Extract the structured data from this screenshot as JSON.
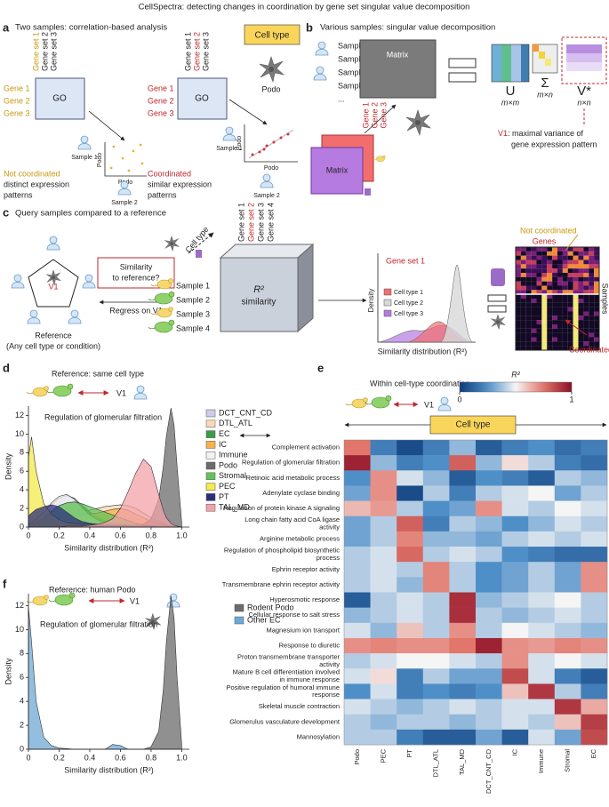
{
  "title": "CellSpectra: detecting changes in coordination by gene set singular value decomposition",
  "panel_a": {
    "label": "a",
    "title": "Two samples: correlation-based analysis",
    "gene_sets_left": [
      "Gene set 1",
      "Gene set 2",
      "Gene set 3"
    ],
    "gene_sets_right": [
      "Gene set 1",
      "Gene set 2",
      "Gene set 3"
    ],
    "cell_type": "Cell type",
    "genes_left": [
      "Gene 1",
      "Gene 2",
      "Gene 3"
    ],
    "genes_right": [
      "Gene 1",
      "Gene 2",
      "Gene 3"
    ],
    "go_left": "GO",
    "go_right": "GO",
    "cell": "Podo",
    "axis_left": [
      "Podo",
      "Podo"
    ],
    "axis_right": [
      "Podo",
      "Podo"
    ],
    "samples_left": [
      "Sample 1",
      "Sample 2"
    ],
    "samples_right": [
      "Sample 1",
      "Sample 2"
    ],
    "left_caption": [
      "Not coordinated",
      "distinct expression",
      "patterns"
    ],
    "right_caption": [
      "Coordinated",
      "similar expression",
      "patterns"
    ]
  },
  "panel_b": {
    "label": "b",
    "title": "Various samples: singular value decomposition",
    "samples": [
      "Sample 1",
      "Sample 2",
      "Sample 3",
      "Sample 4",
      "..."
    ],
    "matrix_top": "Matrix",
    "genes": [
      "Gene 1",
      "Gene 2",
      "Gene 3"
    ],
    "matrix_stack": "Matrix",
    "svd": [
      {
        "symbol": "U",
        "dims": "m×m"
      },
      {
        "symbol": "Σ",
        "dims": "m×n"
      },
      {
        "symbol": "V*",
        "dims": "n×n"
      }
    ],
    "v1": "V1",
    "v1_caption": [
      ": maximal variance of",
      "gene expression pattern"
    ]
  },
  "panel_c": {
    "label": "c",
    "title": "Query samples compared to a reference",
    "v1": "V1",
    "reference": [
      "Reference",
      "(Any cell type or condition)"
    ],
    "question": [
      "Similarity",
      "to reference?"
    ],
    "regress": "Regress on V1",
    "cell_type": "Cell type",
    "gene_sets": [
      "Gene set 1",
      "Gene set 2",
      "Gene set 3",
      "Gene set 4"
    ],
    "samples": [
      "Sample 1",
      "Sample 2",
      "Sample 3",
      "Sample 4"
    ],
    "cube": [
      "R²",
      "similarity"
    ],
    "mini_title": "Gene set 1",
    "mini_ylabel": "Density",
    "mini_legend": [
      "Cell type 1",
      "Cell type 2",
      "Cell type 3"
    ],
    "mini_xlabel": "Similarity distribution (R²)",
    "not_coordinated": "Not coordinated",
    "genes": "Genes",
    "samples_label": "Samples",
    "coordinated": "Coordinated"
  },
  "panel_d": {
    "label": "d",
    "reference": "Reference: same cell type",
    "v1": "V1"
  },
  "panel_e": {
    "label": "e",
    "title": "Within cell-type coordination",
    "v1": "V1",
    "cell_type": "Cell type"
  },
  "panel_f": {
    "label": "f",
    "reference": "Reference: human Podo",
    "v1": "V1"
  },
  "chart_data": [
    {
      "type": "density",
      "title": "Regulation of glomerular filtration",
      "xlabel": "Similarity distribution (R²)",
      "ylabel": "Density",
      "x": [
        0,
        0.02,
        0.05,
        0.1,
        0.15,
        0.2,
        0.25,
        0.3,
        0.35,
        0.4,
        0.45,
        0.5,
        0.55,
        0.6,
        0.65,
        0.7,
        0.75,
        0.8,
        0.85,
        0.88,
        0.9,
        0.93,
        0.95,
        0.97,
        1
      ],
      "xlim": [
        0,
        1.05
      ],
      "ylim": [
        0,
        13
      ],
      "xticks": [
        0,
        0.2,
        0.4,
        0.6,
        0.8,
        {
          "value": 1,
          "label": "1.0"
        }
      ],
      "yticks": [
        0,
        2,
        4,
        6,
        8,
        10,
        12
      ],
      "series": [
        {
          "name": "DCT_CNT_CD",
          "color": "#cfcbe8",
          "values": [
            0.3,
            0.5,
            0.9,
            1.6,
            2.4,
            3.1,
            3.4,
            3.1,
            2.3,
            1.5,
            0.9,
            0.6,
            0.4,
            0.3,
            0.2,
            0.2,
            0.1,
            0.1,
            0.1,
            0,
            0,
            0,
            0,
            0,
            0
          ]
        },
        {
          "name": "DTL_ATL",
          "color": "#fbd9b5",
          "values": [
            0.2,
            0.3,
            0.4,
            0.6,
            0.8,
            1,
            1.2,
            1.4,
            1.6,
            1.8,
            2,
            2.2,
            2.3,
            2.4,
            2.3,
            2,
            1.5,
            1,
            0.6,
            0.4,
            0.3,
            0.2,
            0.1,
            0.1,
            0
          ]
        },
        {
          "name": "EC",
          "color": "#3d9b48",
          "values": [
            0.1,
            0.2,
            0.4,
            0.8,
            1.5,
            2.3,
            2.6,
            2.8,
            2.4,
            1.6,
            1.1,
            0.7,
            0.5,
            0.4,
            0.3,
            0.2,
            0.2,
            0.1,
            0.1,
            0.1,
            0,
            0,
            0,
            0,
            0
          ]
        },
        {
          "name": "IC",
          "color": "#f5b24e",
          "values": [
            0.2,
            0.3,
            0.4,
            0.6,
            0.8,
            1,
            1.1,
            1.2,
            1.3,
            1.4,
            1.5,
            1.7,
            1.9,
            2,
            1.8,
            1.4,
            1,
            0.6,
            0.4,
            0.3,
            0.2,
            0.1,
            0.1,
            0,
            0
          ]
        },
        {
          "name": "Immune",
          "color": "#f2f2f2",
          "values": [
            0.2,
            0.4,
            0.8,
            1.6,
            2.6,
            3.3,
            3.5,
            3,
            2.1,
            1.3,
            0.8,
            0.5,
            0.3,
            0.2,
            0.1,
            0.1,
            0.1,
            0,
            0,
            0,
            0,
            0,
            0,
            0,
            0
          ]
        },
        {
          "name": "Podo",
          "color": "#6b6b6b",
          "values": [
            0,
            0,
            0,
            0,
            0,
            0,
            0,
            0,
            0,
            0,
            0,
            0,
            0,
            0,
            0,
            0.1,
            0.3,
            0.9,
            3,
            6.5,
            9.8,
            12.8,
            11,
            6.5,
            0.5
          ]
        },
        {
          "name": "Stromal",
          "color": "#62c25a",
          "values": [
            0.1,
            0.2,
            0.5,
            1,
            1.7,
            2.3,
            2.6,
            2.7,
            2.5,
            2.2,
            1.9,
            1.6,
            1.3,
            1,
            0.7,
            0.4,
            0.2,
            0.1,
            0.1,
            0,
            0,
            0,
            0,
            0,
            0
          ]
        },
        {
          "name": "PEC",
          "color": "#f3ea4c",
          "values": [
            7.5,
            9.7,
            6,
            2.5,
            1.4,
            0.8,
            0.5,
            0.4,
            0.3,
            0.3,
            0.3,
            0.3,
            0.2,
            0.2,
            0.2,
            0.2,
            0.2,
            0.1,
            0.1,
            0.1,
            0.1,
            0,
            0,
            0,
            0
          ]
        },
        {
          "name": "PT",
          "color": "#2b2e7a",
          "values": [
            1.2,
            1.5,
            1.9,
            2.2,
            2.4,
            2.2,
            1.6,
            1,
            0.6,
            0.4,
            0.3,
            0.2,
            0.2,
            0.2,
            0.1,
            0.1,
            0.1,
            0.1,
            0,
            0,
            0,
            0,
            0,
            0,
            0
          ]
        },
        {
          "name": "TAL_MD",
          "color": "#f2a1a8",
          "values": [
            0,
            0,
            0,
            0,
            0,
            0,
            0.1,
            0.1,
            0.1,
            0.2,
            0.3,
            0.5,
            0.9,
            2,
            3.8,
            5.8,
            7.3,
            6.5,
            3.5,
            1.8,
            1,
            0.4,
            0.2,
            0.1,
            0
          ]
        }
      ]
    },
    {
      "type": "heatmap",
      "colorbar_label": "R²",
      "clim": [
        0,
        1
      ],
      "cticks": [
        0,
        1
      ],
      "colormap": [
        "#0d3b7a",
        "#4f8fc8",
        "#f5f5f5",
        "#e2766a",
        "#8c0d25"
      ],
      "columns": [
        "Podo",
        "PEC",
        "PT",
        "DTL_ATL",
        "TAL_MD",
        "DCT_CNT_CD",
        "IC",
        "Immune",
        "Stromal",
        "EC"
      ],
      "rows": [
        "Complement activation",
        "Regulation of glomerular filtration",
        "Retinoic acid metabolic process",
        "Adenylate cyclase binding",
        "Regulation of protein kinase A signaling",
        "Long chain fatty acid CoA ligase activity",
        "Arginine metabolic process",
        "Regulation of phospholipid biosynthetic process",
        "Ephrin receptor activity",
        "Transmembrane ephrin receptor activity",
        "Hyperosmotic response",
        "Cellular response to salt stress",
        "Magnesium ion transport",
        "Response to diuretic",
        "Proton transmembrane transporter activity",
        "Mature B cell differentiation involved in immune response",
        "Positive regulation of humoral immune response",
        "Skeletal muscle contraction",
        "Glomerulus vasculature development",
        "Mannosylation"
      ],
      "values": [
        [
          0.75,
          0.2,
          0.05,
          0.2,
          0.35,
          0.1,
          0.2,
          0.25,
          0.15,
          0.2
        ],
        [
          0.95,
          0.35,
          0.2,
          0.25,
          0.8,
          0.35,
          0.55,
          0.4,
          0.2,
          0.15
        ],
        [
          0.25,
          0.7,
          0.45,
          0.35,
          0.1,
          0.25,
          0.2,
          0.1,
          0.4,
          0.35
        ],
        [
          0.3,
          0.7,
          0.05,
          0.4,
          0.2,
          0.4,
          0.45,
          0.5,
          0.3,
          0.4
        ],
        [
          0.62,
          0.68,
          0.4,
          0.25,
          0.3,
          0.7,
          0.45,
          0.4,
          0.5,
          0.45
        ],
        [
          0.3,
          0.4,
          0.8,
          0.2,
          0.4,
          0.35,
          0.25,
          0.35,
          0.45,
          0.4
        ],
        [
          0.3,
          0.4,
          0.72,
          0.35,
          0.35,
          0.3,
          0.4,
          0.45,
          0.4,
          0.45
        ],
        [
          0.4,
          0.45,
          0.78,
          0.4,
          0.45,
          0.4,
          0.25,
          0.2,
          0.15,
          0.15
        ],
        [
          0.4,
          0.45,
          0.4,
          0.72,
          0.4,
          0.25,
          0.3,
          0.4,
          0.3,
          0.7
        ],
        [
          0.4,
          0.45,
          0.35,
          0.72,
          0.4,
          0.25,
          0.3,
          0.4,
          0.3,
          0.7
        ],
        [
          0.1,
          0.4,
          0.45,
          0.4,
          0.92,
          0.35,
          0.4,
          0.45,
          0.5,
          0.4
        ],
        [
          0.35,
          0.4,
          0.45,
          0.4,
          0.92,
          0.4,
          0.35,
          0.4,
          0.45,
          0.4
        ],
        [
          0.45,
          0.35,
          0.6,
          0.4,
          0.7,
          0.4,
          0.5,
          0.45,
          0.4,
          0.35
        ],
        [
          0.7,
          0.72,
          0.7,
          0.7,
          0.75,
          0.95,
          0.7,
          0.68,
          0.72,
          0.7
        ],
        [
          0.4,
          0.45,
          0.5,
          0.5,
          0.45,
          0.4,
          0.7,
          0.45,
          0.5,
          0.45
        ],
        [
          0.45,
          0.55,
          0.2,
          0.4,
          0.3,
          0.3,
          0.85,
          0.45,
          0.2,
          0.1
        ],
        [
          0.25,
          0.45,
          0.2,
          0.25,
          0.2,
          0.25,
          0.6,
          0.9,
          0.4,
          0.2
        ],
        [
          0.45,
          0.4,
          0.35,
          0.4,
          0.45,
          0.4,
          0.45,
          0.45,
          0.9,
          0.65
        ],
        [
          0.4,
          0.35,
          0.4,
          0.4,
          0.35,
          0.4,
          0.45,
          0.4,
          0.6,
          0.88
        ],
        [
          0.4,
          0.4,
          0.2,
          0.1,
          0.1,
          0.3,
          0.1,
          0.45,
          0.3,
          0.85
        ]
      ]
    },
    {
      "type": "density",
      "title": "Regulation of glomerular filtration",
      "xlabel": "Similarity distribution (R²)",
      "ylabel": "Density",
      "x": [
        0,
        0.02,
        0.05,
        0.1,
        0.15,
        0.2,
        0.25,
        0.3,
        0.35,
        0.4,
        0.45,
        0.5,
        0.55,
        0.6,
        0.65,
        0.7,
        0.75,
        0.8,
        0.85,
        0.88,
        0.9,
        0.93,
        0.95,
        0.97,
        1
      ],
      "xlim": [
        0,
        1.05
      ],
      "ylim": [
        0,
        13
      ],
      "xticks": [
        0,
        0.2,
        0.4,
        0.6,
        0.8,
        {
          "value": 1,
          "label": "1.0"
        }
      ],
      "yticks": [
        0,
        2,
        4,
        6,
        8,
        10,
        12
      ],
      "series": [
        {
          "name": "Rodent Podo",
          "color": "#6b6b6b",
          "values": [
            0,
            0,
            0,
            0,
            0,
            0,
            0,
            0,
            0,
            0,
            0,
            0,
            0,
            0,
            0,
            0,
            0,
            0.2,
            1.5,
            5,
            9,
            12.8,
            11,
            6,
            0.4
          ]
        },
        {
          "name": "Other EC",
          "color": "#6fa8d6",
          "values": [
            11.9,
            9,
            4,
            1,
            0.3,
            0.1,
            0.05,
            0,
            0,
            0,
            0,
            0,
            0.4,
            0.3,
            0,
            0,
            0,
            0,
            0,
            0,
            0,
            0,
            0,
            0,
            0
          ]
        }
      ]
    }
  ]
}
